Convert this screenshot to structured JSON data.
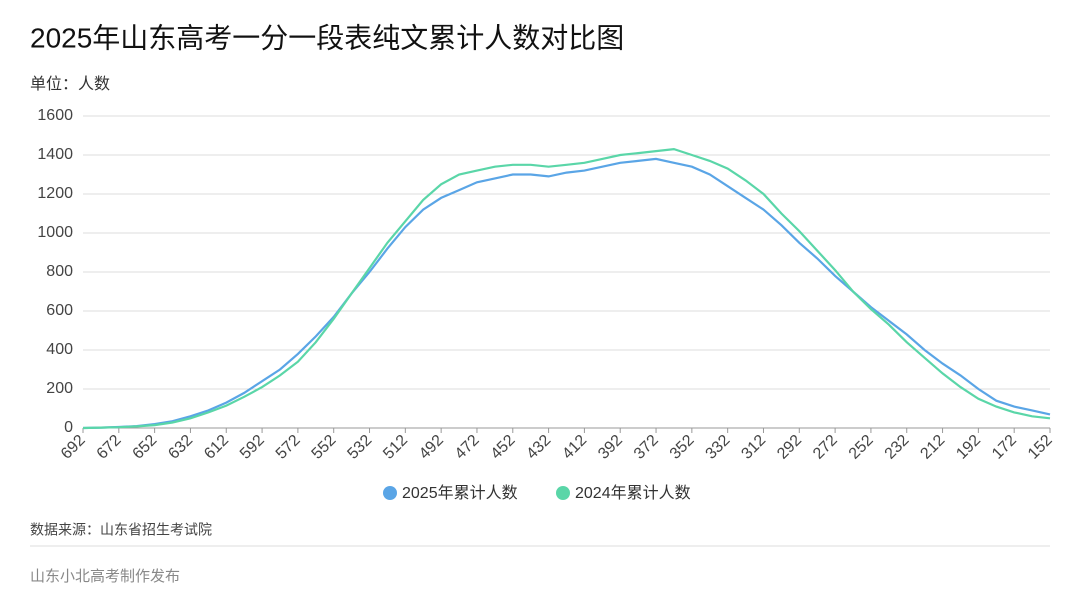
{
  "chart_data": {
    "type": "line",
    "title": "2025年山东高考一分一段表纯文累计人数对比图",
    "unit_label": "单位：人数",
    "source": "数据来源：山东省招生考试院",
    "credit": "山东小北高考制作发布",
    "x": [
      692,
      682,
      672,
      662,
      652,
      642,
      632,
      622,
      612,
      602,
      592,
      582,
      572,
      562,
      552,
      542,
      532,
      522,
      512,
      502,
      492,
      482,
      472,
      462,
      452,
      442,
      432,
      422,
      412,
      402,
      392,
      382,
      372,
      362,
      352,
      342,
      332,
      322,
      312,
      302,
      292,
      282,
      272,
      262,
      252,
      242,
      232,
      222,
      212,
      202,
      192,
      182,
      172,
      162,
      152
    ],
    "series": [
      {
        "name": "2025年累计人数",
        "color": "#5aa5e6",
        "values": [
          0,
          2,
          5,
          10,
          20,
          35,
          60,
          90,
          130,
          180,
          240,
          300,
          380,
          470,
          570,
          690,
          800,
          920,
          1030,
          1120,
          1180,
          1220,
          1260,
          1280,
          1300,
          1300,
          1290,
          1310,
          1320,
          1340,
          1360,
          1370,
          1380,
          1360,
          1340,
          1300,
          1240,
          1180,
          1120,
          1040,
          950,
          870,
          780,
          700,
          620,
          550,
          480,
          400,
          330,
          270,
          200,
          140,
          110,
          90,
          70
        ]
      },
      {
        "name": "2024年累计人数",
        "color": "#5ad6a8",
        "values": [
          0,
          2,
          4,
          8,
          15,
          28,
          50,
          80,
          115,
          160,
          210,
          270,
          340,
          440,
          560,
          690,
          820,
          950,
          1060,
          1170,
          1250,
          1300,
          1320,
          1340,
          1350,
          1350,
          1340,
          1350,
          1360,
          1380,
          1400,
          1410,
          1420,
          1430,
          1400,
          1370,
          1330,
          1270,
          1200,
          1100,
          1010,
          910,
          810,
          700,
          610,
          530,
          440,
          360,
          280,
          210,
          150,
          110,
          80,
          60,
          50
        ]
      }
    ],
    "xlim": [
      692,
      152
    ],
    "xticks": [
      692,
      672,
      652,
      632,
      612,
      592,
      572,
      552,
      532,
      512,
      492,
      472,
      452,
      432,
      412,
      392,
      372,
      352,
      332,
      312,
      292,
      272,
      252,
      232,
      212,
      192,
      172,
      152
    ],
    "ylim": [
      0,
      1600
    ],
    "yticks": [
      0,
      200,
      400,
      600,
      800,
      1000,
      1200,
      1400,
      1600
    ],
    "grid": true
  }
}
